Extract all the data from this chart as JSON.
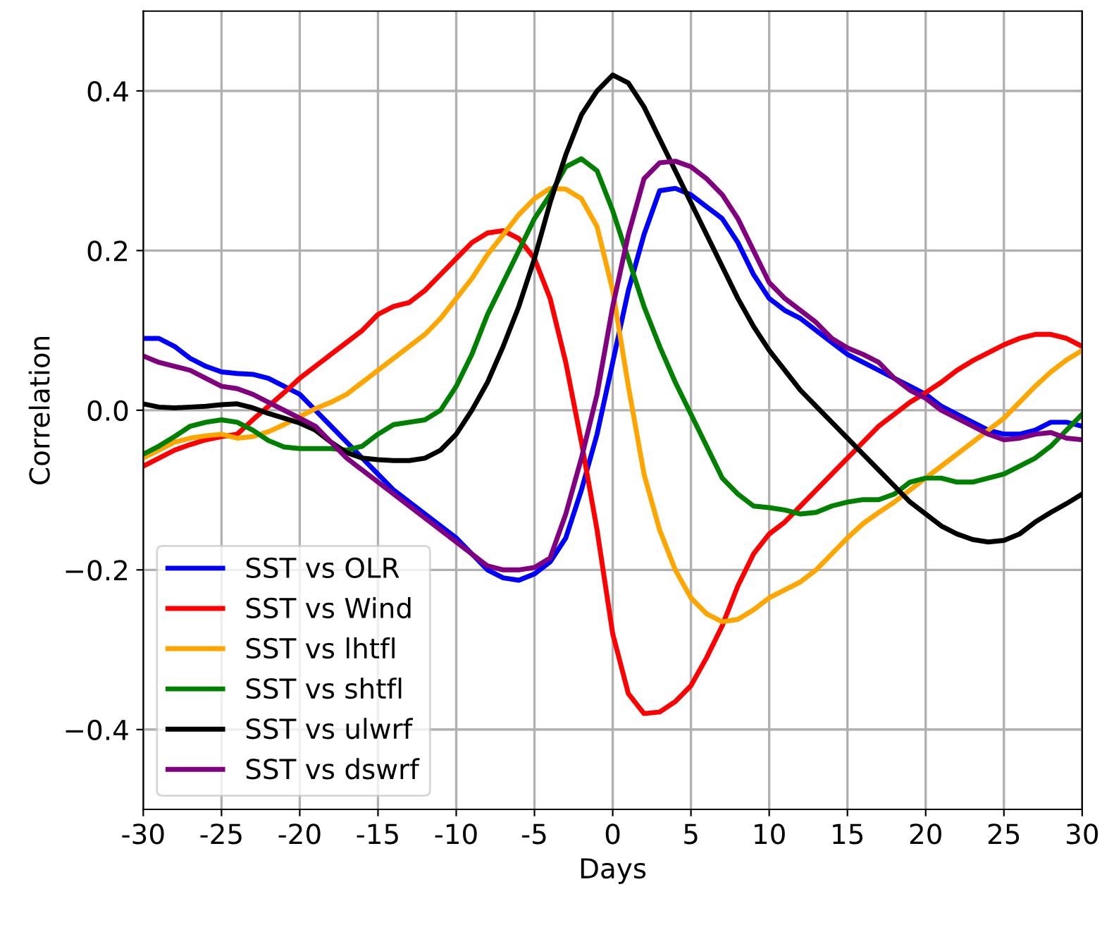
{
  "chart_data": {
    "type": "line",
    "xlabel": "Days",
    "ylabel": "Correlation",
    "x": [
      -30,
      -29,
      -28,
      -27,
      -26,
      -25,
      -24,
      -23,
      -22,
      -21,
      -20,
      -19,
      -18,
      -17,
      -16,
      -15,
      -14,
      -13,
      -12,
      -11,
      -10,
      -9,
      -8,
      -7,
      -6,
      -5,
      -4,
      -3,
      -2,
      -1,
      0,
      1,
      2,
      3,
      4,
      5,
      6,
      7,
      8,
      9,
      10,
      11,
      12,
      13,
      14,
      15,
      16,
      17,
      18,
      19,
      20,
      21,
      22,
      23,
      24,
      25,
      26,
      27,
      28,
      29,
      30
    ],
    "series": [
      {
        "name": "SST vs OLR",
        "color": "#0000ff",
        "values": [
          0.09,
          0.09,
          0.08,
          0.065,
          0.055,
          0.048,
          0.046,
          0.045,
          0.04,
          0.03,
          0.02,
          0.0,
          -0.02,
          -0.04,
          -0.06,
          -0.08,
          -0.1,
          -0.115,
          -0.13,
          -0.145,
          -0.16,
          -0.18,
          -0.2,
          -0.21,
          -0.213,
          -0.205,
          -0.19,
          -0.16,
          -0.1,
          -0.03,
          0.06,
          0.15,
          0.22,
          0.275,
          0.278,
          0.27,
          0.255,
          0.24,
          0.21,
          0.17,
          0.14,
          0.125,
          0.115,
          0.1,
          0.085,
          0.07,
          0.06,
          0.05,
          0.04,
          0.03,
          0.02,
          0.005,
          -0.005,
          -0.015,
          -0.025,
          -0.03,
          -0.03,
          -0.025,
          -0.015,
          -0.015,
          -0.02
        ]
      },
      {
        "name": "SST vs Wind",
        "color": "#ff0000",
        "values": [
          -0.07,
          -0.06,
          -0.05,
          -0.043,
          -0.037,
          -0.033,
          -0.03,
          -0.012,
          0.005,
          0.022,
          0.04,
          0.055,
          0.07,
          0.085,
          0.1,
          0.12,
          0.13,
          0.135,
          0.15,
          0.17,
          0.19,
          0.21,
          0.222,
          0.225,
          0.215,
          0.19,
          0.14,
          0.06,
          -0.04,
          -0.15,
          -0.28,
          -0.355,
          -0.38,
          -0.378,
          -0.365,
          -0.345,
          -0.31,
          -0.27,
          -0.22,
          -0.18,
          -0.155,
          -0.14,
          -0.12,
          -0.1,
          -0.08,
          -0.06,
          -0.04,
          -0.02,
          -0.005,
          0.01,
          0.022,
          0.035,
          0.05,
          0.062,
          0.072,
          0.082,
          0.09,
          0.095,
          0.095,
          0.09,
          0.08
        ]
      },
      {
        "name": "SST vs lhtfl",
        "color": "#ffa500",
        "values": [
          -0.06,
          -0.05,
          -0.04,
          -0.035,
          -0.032,
          -0.03,
          -0.035,
          -0.033,
          -0.027,
          -0.018,
          -0.008,
          0.002,
          0.01,
          0.02,
          0.035,
          0.05,
          0.065,
          0.08,
          0.095,
          0.115,
          0.14,
          0.165,
          0.195,
          0.22,
          0.245,
          0.265,
          0.278,
          0.277,
          0.265,
          0.23,
          0.15,
          0.03,
          -0.08,
          -0.15,
          -0.2,
          -0.235,
          -0.255,
          -0.265,
          -0.262,
          -0.25,
          -0.235,
          -0.225,
          -0.215,
          -0.2,
          -0.18,
          -0.16,
          -0.142,
          -0.128,
          -0.115,
          -0.1,
          -0.085,
          -0.07,
          -0.055,
          -0.04,
          -0.025,
          -0.01,
          0.01,
          0.03,
          0.048,
          0.063,
          0.075
        ]
      },
      {
        "name": "SST vs shtfl",
        "color": "#008000",
        "values": [
          -0.055,
          -0.045,
          -0.033,
          -0.02,
          -0.015,
          -0.012,
          -0.015,
          -0.025,
          -0.038,
          -0.046,
          -0.048,
          -0.048,
          -0.048,
          -0.05,
          -0.045,
          -0.03,
          -0.018,
          -0.015,
          -0.012,
          0.0,
          0.03,
          0.07,
          0.12,
          0.16,
          0.2,
          0.24,
          0.27,
          0.305,
          0.315,
          0.3,
          0.25,
          0.19,
          0.13,
          0.08,
          0.035,
          -0.005,
          -0.045,
          -0.085,
          -0.105,
          -0.12,
          -0.122,
          -0.125,
          -0.13,
          -0.128,
          -0.12,
          -0.115,
          -0.112,
          -0.112,
          -0.105,
          -0.09,
          -0.085,
          -0.085,
          -0.09,
          -0.09,
          -0.085,
          -0.08,
          -0.07,
          -0.06,
          -0.045,
          -0.025,
          -0.005
        ]
      },
      {
        "name": "SST vs ulwrf",
        "color": "#000000",
        "values": [
          0.008,
          0.004,
          0.003,
          0.004,
          0.005,
          0.007,
          0.008,
          0.003,
          -0.004,
          -0.01,
          -0.016,
          -0.025,
          -0.04,
          -0.053,
          -0.06,
          -0.062,
          -0.063,
          -0.063,
          -0.06,
          -0.05,
          -0.03,
          0.0,
          0.035,
          0.08,
          0.13,
          0.19,
          0.26,
          0.32,
          0.37,
          0.4,
          0.42,
          0.41,
          0.38,
          0.34,
          0.3,
          0.26,
          0.22,
          0.18,
          0.14,
          0.105,
          0.075,
          0.05,
          0.025,
          0.005,
          -0.015,
          -0.035,
          -0.055,
          -0.075,
          -0.095,
          -0.115,
          -0.13,
          -0.145,
          -0.155,
          -0.162,
          -0.165,
          -0.163,
          -0.155,
          -0.14,
          -0.128,
          -0.117,
          -0.105
        ]
      },
      {
        "name": "SST vs dswrf",
        "color": "#800080",
        "values": [
          0.068,
          0.06,
          0.055,
          0.05,
          0.04,
          0.03,
          0.027,
          0.02,
          0.01,
          0.0,
          -0.01,
          -0.02,
          -0.04,
          -0.06,
          -0.075,
          -0.09,
          -0.105,
          -0.12,
          -0.135,
          -0.15,
          -0.165,
          -0.18,
          -0.195,
          -0.2,
          -0.2,
          -0.197,
          -0.185,
          -0.13,
          -0.06,
          0.02,
          0.13,
          0.22,
          0.29,
          0.31,
          0.312,
          0.305,
          0.29,
          0.27,
          0.24,
          0.2,
          0.16,
          0.14,
          0.125,
          0.11,
          0.09,
          0.078,
          0.07,
          0.06,
          0.04,
          0.025,
          0.015,
          0.0,
          -0.01,
          -0.02,
          -0.03,
          -0.037,
          -0.035,
          -0.03,
          -0.028,
          -0.035,
          -0.037
        ]
      }
    ],
    "xlim": [
      -30,
      30
    ],
    "xticks": [
      -30,
      -25,
      -20,
      -15,
      -10,
      -5,
      0,
      5,
      10,
      15,
      20,
      25,
      30
    ],
    "ylim": [
      -0.5,
      0.5
    ],
    "yticks": [
      {
        "value": -0.4,
        "label": "−0.4"
      },
      {
        "value": -0.2,
        "label": "−0.2"
      },
      {
        "value": 0.0,
        "label": "0.0"
      },
      {
        "value": 0.2,
        "label": "0.2"
      },
      {
        "value": 0.4,
        "label": "0.4"
      }
    ],
    "grid": true,
    "legend": "bottom left",
    "marker": "none",
    "line_style": "solid"
  }
}
